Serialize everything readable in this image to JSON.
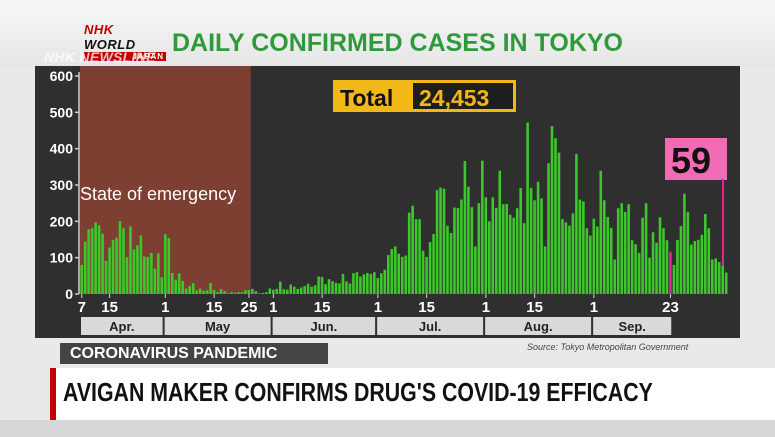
{
  "header": {
    "logo_primary": "NHK",
    "logo_secondary": " WORLD",
    "logo_sub": "JAPAN",
    "newsline": "NHK NEWSLINE",
    "title": "DAILY CONFIRMED CASES IN TOKYO"
  },
  "colors": {
    "bar": "#3cc72a",
    "latest_bar": "#e0288c",
    "emergency": "#8c4234",
    "total_box": "#f2b818",
    "callout": "#f36bb5",
    "title": "#2e9a3a"
  },
  "chart_data": {
    "type": "bar",
    "title": "DAILY CONFIRMED CASES IN TOKYO",
    "start_date": "2020-04-07",
    "end_date": "2020-09-23",
    "ylim": [
      0,
      600
    ],
    "yticks": [
      "0",
      "100",
      "200",
      "300",
      "400",
      "500",
      "600"
    ],
    "grid": false,
    "xtick_labels": [
      {
        "date": "2020-04-07",
        "label": "7"
      },
      {
        "date": "2020-04-15",
        "label": "15"
      },
      {
        "date": "2020-05-01",
        "label": "1"
      },
      {
        "date": "2020-05-15",
        "label": "15"
      },
      {
        "date": "2020-05-25",
        "label": "25"
      },
      {
        "date": "2020-06-01",
        "label": "1"
      },
      {
        "date": "2020-06-15",
        "label": "15"
      },
      {
        "date": "2020-07-01",
        "label": "1"
      },
      {
        "date": "2020-07-15",
        "label": "15"
      },
      {
        "date": "2020-08-01",
        "label": "1"
      },
      {
        "date": "2020-08-15",
        "label": "15"
      },
      {
        "date": "2020-09-01",
        "label": "1"
      },
      {
        "date": "2020-09-23",
        "label": "23"
      }
    ],
    "months": [
      {
        "label": "Apr.",
        "start": "2020-04-07",
        "end": "2020-04-30"
      },
      {
        "label": "May",
        "start": "2020-05-01",
        "end": "2020-05-31"
      },
      {
        "label": "Jun.",
        "start": "2020-06-01",
        "end": "2020-06-30"
      },
      {
        "label": "Jul.",
        "start": "2020-07-01",
        "end": "2020-07-31"
      },
      {
        "label": "Aug.",
        "start": "2020-08-01",
        "end": "2020-08-31"
      },
      {
        "label": "Sep.",
        "start": "2020-09-01",
        "end": "2020-09-23"
      }
    ],
    "values": [
      80,
      144,
      178,
      181,
      197,
      189,
      166,
      91,
      128,
      149,
      155,
      201,
      181,
      101,
      186,
      123,
      134,
      161,
      103,
      102,
      113,
      70,
      112,
      46,
      165,
      154,
      58,
      39,
      57,
      36,
      15,
      22,
      30,
      10,
      15,
      9,
      10,
      30,
      11,
      5,
      14,
      8,
      2,
      5,
      3,
      5,
      5,
      10,
      11,
      14,
      8,
      2,
      3,
      5,
      15,
      12,
      14,
      34,
      13,
      12,
      26,
      20,
      14,
      18,
      22,
      28,
      20,
      24,
      48,
      47,
      27,
      41,
      35,
      31,
      29,
      55,
      35,
      29,
      57,
      60,
      48,
      54,
      58,
      55,
      60,
      44,
      57,
      67,
      107,
      124,
      131,
      111,
      102,
      106,
      224,
      243,
      206,
      206,
      119,
      102,
      143,
      165,
      286,
      293,
      290,
      188,
      168,
      238,
      237,
      260,
      366,
      295,
      239,
      131,
      250,
      367,
      266,
      200,
      266,
      237,
      339,
      247,
      248,
      218,
      210,
      236,
      292,
      195,
      472,
      292,
      258,
      309,
      263,
      131,
      360,
      462,
      429,
      389,
      206,
      197,
      188,
      222,
      385,
      260,
      255,
      181,
      161,
      207,
      186,
      339,
      258,
      212,
      182,
      95,
      236,
      250,
      226,
      247,
      148,
      137,
      113,
      210,
      250,
      100,
      170,
      141,
      211,
      181,
      148,
      116,
      80,
      149,
      187,
      276,
      226,
      136,
      146,
      149,
      163,
      220,
      181,
      95,
      98,
      88,
      78,
      59
    ],
    "latest": {
      "date": "2020-09-23",
      "value": 59,
      "label": "59"
    },
    "annotations": [
      {
        "text": "State of emergency",
        "start": "2020-04-07",
        "end": "2020-05-25"
      },
      {
        "text_label": "Total",
        "text_value": "24,453"
      }
    ]
  },
  "source": "Source: Tokyo Metropolitan Government",
  "topic_tag": "CORONAVIRUS PANDEMIC",
  "headline": "AVIGAN MAKER CONFIRMS DRUG'S COVID-19 EFFICACY"
}
